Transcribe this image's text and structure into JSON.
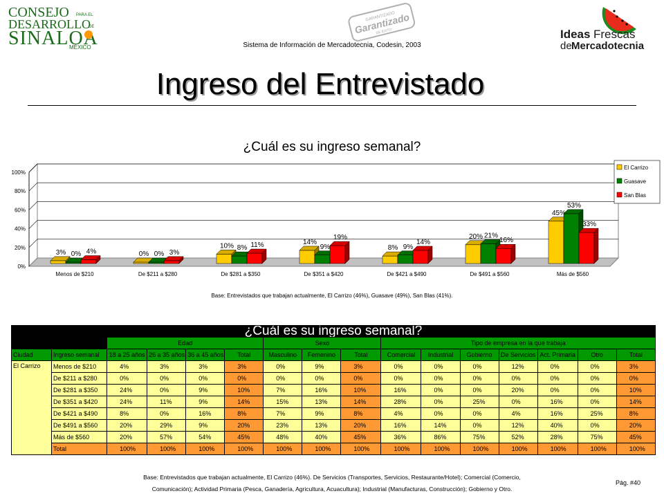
{
  "header": {
    "org_logo_line1": "CONSEJO",
    "org_logo_line1_small": "PARA EL",
    "org_logo_line2": "DESARROLLO",
    "org_logo_line2_small": "DE",
    "org_logo_line3": "SINALOA",
    "org_logo_line4": "MÉXICO",
    "stamp_line1": "GARANTIZADO",
    "stamp_line2": "Garantizado",
    "stamp_line3": "DE ÉXITO",
    "brand_line1a": "Ideas",
    "brand_line1b": "Frescas",
    "brand_line2a": "de",
    "brand_line2b": "Mercadotecnia",
    "system_line": "Sistema de Información de Mercadotecnia, Codesin, 2003",
    "title": "Ingreso del Entrevistado"
  },
  "chart_data": {
    "type": "bar",
    "title": "¿Cuál es su ingreso semanal?",
    "categories": [
      "Menos de $210",
      "De $211 a $280",
      "De $281 a $350",
      "De $351 a $420",
      "De $421 a $490",
      "De $491 a $560",
      "Más de $560"
    ],
    "series": [
      {
        "name": "El Carrizo",
        "values": [
          3,
          0,
          10,
          14,
          8,
          20,
          45
        ],
        "labels": [
          "3%",
          "0%",
          "10%",
          "14%",
          "8%",
          "20%",
          "45%"
        ],
        "color": "#ffcc00"
      },
      {
        "name": "Guasave",
        "values": [
          0,
          0,
          8,
          9,
          9,
          21,
          53
        ],
        "labels": [
          "0%",
          "0%",
          "8%",
          "9%",
          "9%",
          "21%",
          "53%"
        ],
        "color": "#008000"
      },
      {
        "name": "San Blas",
        "values": [
          4,
          3,
          11,
          19,
          14,
          16,
          33
        ],
        "labels": [
          "4%",
          "3%",
          "11%",
          "19%",
          "14%",
          "16%",
          "33%"
        ],
        "color": "#ff0000"
      }
    ],
    "yticks": [
      "100%",
      "80%",
      "60%",
      "40%",
      "20%",
      "0%"
    ],
    "ylim": [
      0,
      100
    ],
    "legend_position": "right",
    "grid": true,
    "base_note": "Base: Entrevistados que trabajan actualmente, El Carrizo (46%), Guasave (49%), San Blas (41%)."
  },
  "table": {
    "title": "¿Cuál es su ingreso semanal?",
    "group_headers": [
      "Edad",
      "Sexo",
      "Tipo de empresa en la que trabaja"
    ],
    "columns": [
      "Ciudad",
      "Ingreso semanal",
      "18 a 25 años",
      "26 a 35 años",
      "36 a 45 años",
      "Total",
      "Masculino",
      "Femenino",
      "Total",
      "Comercial",
      "Industrial",
      "Gobierno",
      "De Servicios",
      "Act. Primaria",
      "Otro",
      "Total"
    ],
    "city": "El Carrizo",
    "rows": [
      {
        "label": "Menos de $210",
        "cells": [
          "4%",
          "3%",
          "3%",
          "3%",
          "0%",
          "9%",
          "3%",
          "0%",
          "0%",
          "0%",
          "12%",
          "0%",
          "0%",
          "3%"
        ]
      },
      {
        "label": "De $211 a $280",
        "cells": [
          "0%",
          "0%",
          "0%",
          "0%",
          "0%",
          "0%",
          "0%",
          "0%",
          "0%",
          "0%",
          "0%",
          "0%",
          "0%",
          "0%"
        ]
      },
      {
        "label": "De $281 a $350",
        "cells": [
          "24%",
          "0%",
          "9%",
          "10%",
          "7%",
          "16%",
          "10%",
          "16%",
          "0%",
          "0%",
          "20%",
          "0%",
          "0%",
          "10%"
        ]
      },
      {
        "label": "De $351 a $420",
        "cells": [
          "24%",
          "11%",
          "9%",
          "14%",
          "15%",
          "13%",
          "14%",
          "28%",
          "0%",
          "25%",
          "0%",
          "16%",
          "0%",
          "14%"
        ]
      },
      {
        "label": "De $421 a $490",
        "cells": [
          "8%",
          "0%",
          "16%",
          "8%",
          "7%",
          "9%",
          "8%",
          "4%",
          "0%",
          "0%",
          "4%",
          "16%",
          "25%",
          "8%"
        ]
      },
      {
        "label": "De $491 a $560",
        "cells": [
          "20%",
          "29%",
          "9%",
          "20%",
          "23%",
          "13%",
          "20%",
          "16%",
          "14%",
          "0%",
          "12%",
          "40%",
          "0%",
          "20%"
        ]
      },
      {
        "label": "Más de $560",
        "cells": [
          "20%",
          "57%",
          "54%",
          "45%",
          "48%",
          "40%",
          "45%",
          "36%",
          "86%",
          "75%",
          "52%",
          "28%",
          "75%",
          "45%"
        ]
      }
    ],
    "total_row": {
      "label": "Total",
      "cells": [
        "100%",
        "100%",
        "100%",
        "100%",
        "100%",
        "100%",
        "100%",
        "100%",
        "100%",
        "100%",
        "100%",
        "100%",
        "100%",
        "100%"
      ]
    }
  },
  "footer": {
    "note_line1": "Base: Entrevistados que trabajan actualmente, El Carrizo (46%). De Servicios (Transportes, Servicios, Restaurante/Hotel); Comercial (Comercio,",
    "note_line2": "Comunicación); Actividad Primaria (Pesca, Ganadería, Agricultura, Acuacultura); Industrial (Manufacturas, Construcción); Gobierno y Otro.",
    "page": "Pág. #40"
  }
}
